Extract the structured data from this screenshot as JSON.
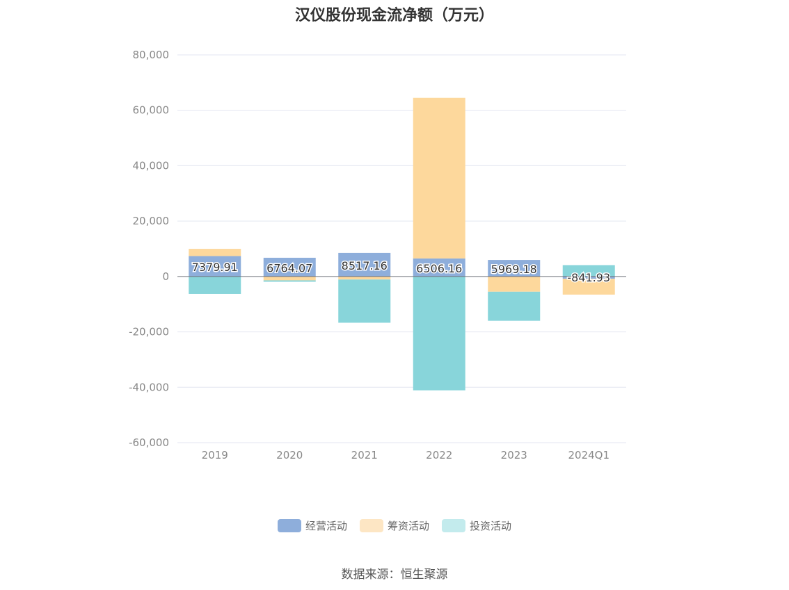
{
  "chart_data": {
    "type": "bar",
    "title": "汉仪股份现金流净额（万元）",
    "xlabel": "",
    "ylabel": "",
    "ylim": [
      -60000,
      80000
    ],
    "yticks": [
      80000,
      60000,
      40000,
      20000,
      0,
      -20000,
      -40000,
      -60000
    ],
    "ytick_labels": [
      "80,000",
      "60,000",
      "40,000",
      "20,000",
      "0",
      "-20,000",
      "-40,000",
      "-60,000"
    ],
    "categories": [
      "2019",
      "2020",
      "2021",
      "2022",
      "2023",
      "2024Q1"
    ],
    "series": [
      {
        "name": "经营活动",
        "color": "#8eaedb",
        "values": [
          7379.91,
          6764.07,
          8517.16,
          6506.16,
          5969.18,
          -841.93
        ]
      },
      {
        "name": "筹资活动",
        "color": "#fdd89c",
        "values": [
          2600,
          -1400,
          -1100,
          58000,
          -5500,
          -5700
        ]
      },
      {
        "name": "投资活动",
        "color": "#88d5da",
        "values": [
          -6300,
          -500,
          -15600,
          -41100,
          -10500,
          4100
        ]
      }
    ],
    "data_labels": [
      "7379.91",
      "6764.07",
      "8517.16",
      "6506.16",
      "5969.18",
      "-841.93"
    ],
    "legend_colors": [
      "#8eaedb",
      "#fde6c4",
      "#c3ebed"
    ],
    "legend_position": "bottom",
    "grid": true
  },
  "source_text": "数据来源：恒生聚源"
}
